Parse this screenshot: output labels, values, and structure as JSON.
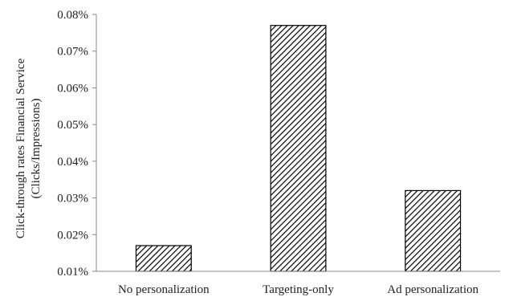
{
  "chart_data": {
    "type": "bar",
    "categories": [
      "No personalization",
      "Targeting-only",
      "Ad personalization"
    ],
    "values": [
      0.017,
      0.077,
      0.032
    ],
    "ylabel_lines": [
      "Click-through rates Financial Service",
      "(Clicks/Impressions)"
    ],
    "xlabel": "",
    "ylim": [
      0.01,
      0.08
    ],
    "yticks": [
      0.01,
      0.02,
      0.03,
      0.04,
      0.05,
      0.06,
      0.07,
      0.08
    ],
    "ytick_labels": [
      "0.01%",
      "0.02%",
      "0.03%",
      "0.04%",
      "0.05%",
      "0.06%",
      "0.07%",
      "0.08%"
    ],
    "grid": false,
    "bar_pattern": "diagonal-hatch",
    "colors": {
      "bar_stroke": "#000000",
      "hatch": "#000000",
      "bar_fill": "#ffffff",
      "axis": "#888888"
    }
  }
}
